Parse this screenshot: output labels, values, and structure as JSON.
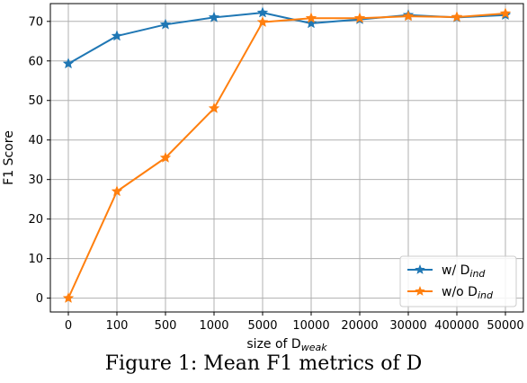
{
  "caption": "Figure 1: Mean F1 metrics of D",
  "chart_data": {
    "type": "line",
    "categories": [
      "0",
      "100",
      "500",
      "1000",
      "5000",
      "10000",
      "20000",
      "30000",
      "400000",
      "50000"
    ],
    "xlabel": {
      "main": "size of D",
      "sub": "weak"
    },
    "ylabel": "F1 Score",
    "ylim": [
      -3.5,
      74.5
    ],
    "yticks": [
      0,
      10,
      20,
      30,
      40,
      50,
      60,
      70
    ],
    "grid": true,
    "legend_position": "bottom-right",
    "series": [
      {
        "name": {
          "main": "w/ D",
          "sub": "ind"
        },
        "color": "#1f77b4",
        "marker": "star",
        "values": [
          59.3,
          66.3,
          69.2,
          71.0,
          72.2,
          69.5,
          70.5,
          71.6,
          71.0,
          71.6
        ]
      },
      {
        "name": {
          "main": "w/o D",
          "sub": "ind"
        },
        "color": "#ff7f0e",
        "marker": "star",
        "values": [
          0.0,
          27.0,
          35.5,
          48.0,
          69.8,
          70.8,
          70.8,
          71.3,
          71.1,
          72.0
        ]
      }
    ]
  }
}
